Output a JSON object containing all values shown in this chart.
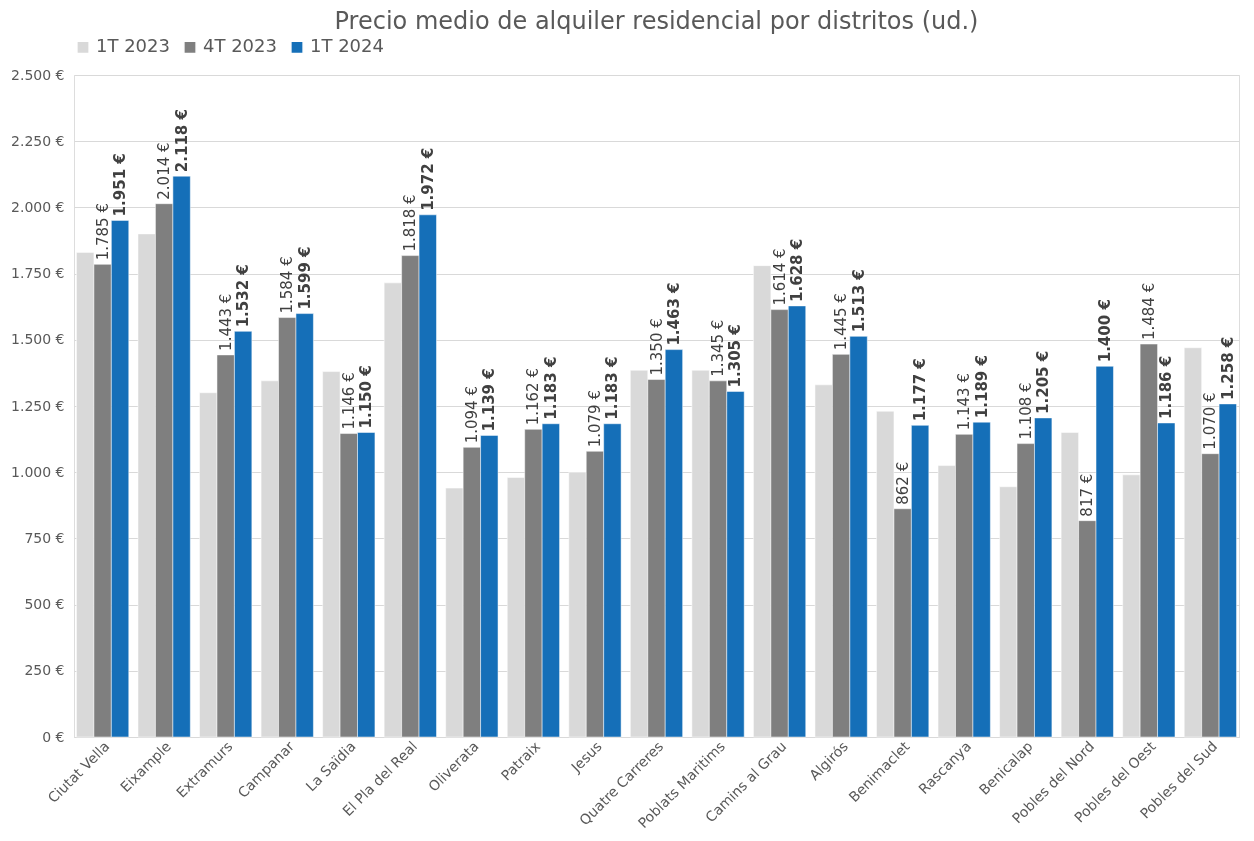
{
  "chart_data": {
    "type": "bar",
    "title": "Precio medio de alquiler residencial por distritos (ud.)",
    "categories": [
      "Ciutat Vella",
      "Eixample",
      "Extramurs",
      "Campanar",
      "La Saïdia",
      "El Pla del Real",
      "Oliverata",
      "Patraix",
      "Jesus",
      "Quatre Carreres",
      "Poblats Maritims",
      "Camins al Grau",
      "Algirós",
      "Benimaclet",
      "Rascanya",
      "Benicalap",
      "Pobles del Nord",
      "Pobles del Oest",
      "Pobles del Sud"
    ],
    "series": [
      {
        "name": "1T 2023",
        "color": "#d9d9d9",
        "values": [
          1830,
          1900,
          1300,
          1345,
          1380,
          1715,
          940,
          980,
          1000,
          1385,
          1385,
          1780,
          1330,
          1230,
          1025,
          945,
          1150,
          990,
          1470
        ]
      },
      {
        "name": "4T 2023",
        "color": "#7f7f7f",
        "values": [
          1785,
          2014,
          1443,
          1584,
          1146,
          1818,
          1094,
          1162,
          1079,
          1350,
          1345,
          1614,
          1445,
          862,
          1143,
          1108,
          817,
          1484,
          1070
        ],
        "value_labels": [
          "1.785 €",
          "2.014 €",
          "1.443 €",
          "1.584 €",
          "1.146 €",
          "1.818 €",
          "1.094 €",
          "1.162 €",
          "1.079 €",
          "1.350 €",
          "1.345 €",
          "1.614 €",
          "1.445 €",
          "862 €",
          "1.143 €",
          "1.108 €",
          "817 €",
          "1.484 €",
          "1.070 €"
        ]
      },
      {
        "name": "1T 2024",
        "color": "#156fb8",
        "values": [
          1951,
          2118,
          1532,
          1599,
          1150,
          1972,
          1139,
          1183,
          1183,
          1463,
          1305,
          1628,
          1513,
          1177,
          1189,
          1205,
          1400,
          1186,
          1258
        ],
        "value_labels": [
          "1.951 €",
          "2.118 €",
          "1.532 €",
          "1.599 €",
          "1.150 €",
          "1.972 €",
          "1.139 €",
          "1.183 €",
          "1.183 €",
          "1.463 €",
          "1.305 €",
          "1.628 €",
          "1.513 €",
          "1.177 €",
          "1.189 €",
          "1.205 €",
          "1.400 €",
          "1.186 €",
          "1.258 €"
        ]
      }
    ],
    "ylim": [
      0,
      2500
    ],
    "yticks": [
      {
        "value": 0,
        "label": "0 €"
      },
      {
        "value": 250,
        "label": "250 €"
      },
      {
        "value": 500,
        "label": "500 €"
      },
      {
        "value": 750,
        "label": "750 €"
      },
      {
        "value": 1000,
        "label": "1.000 €"
      },
      {
        "value": 1250,
        "label": "1.250 €"
      },
      {
        "value": 1500,
        "label": "1.500 €"
      },
      {
        "value": 1750,
        "label": "1.750 €"
      },
      {
        "value": 2000,
        "label": "2.000 €"
      },
      {
        "value": 2250,
        "label": "2.250 €"
      },
      {
        "value": 2500,
        "label": "2.500 €"
      }
    ],
    "grid": "y",
    "legend": "top"
  }
}
